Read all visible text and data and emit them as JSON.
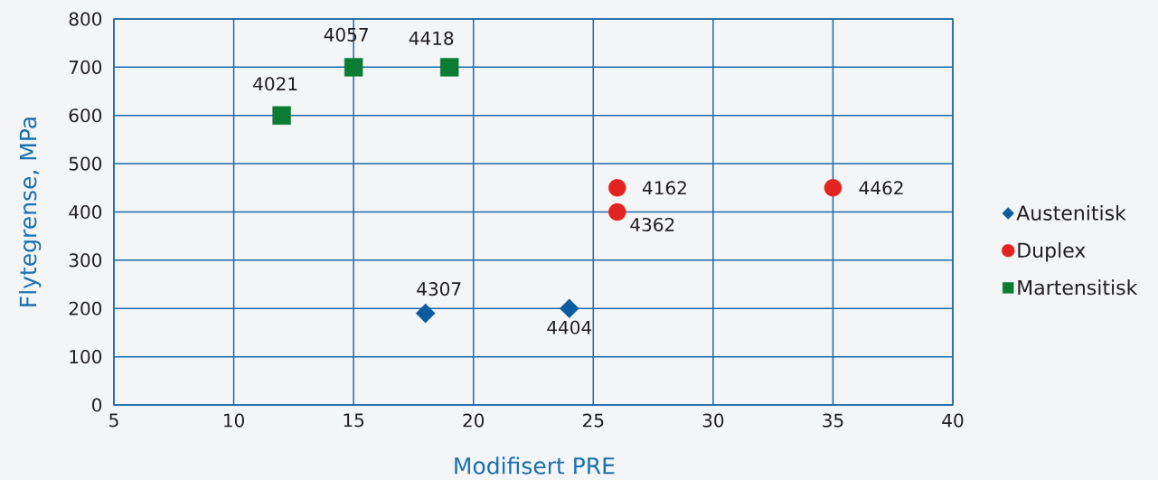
{
  "chart_data": {
    "type": "scatter",
    "xlabel": "Modifisert PRE",
    "ylabel": "Flytegrense, MPa",
    "series": [
      {
        "name": "Austenitisk",
        "color": "#0b5c9e",
        "marker": "diamond",
        "x": [
          18,
          24
        ],
        "values": [
          190,
          200
        ]
      },
      {
        "name": "Duplex",
        "color": "#e2231f",
        "marker": "circle",
        "x": [
          26,
          26,
          35
        ],
        "values": [
          450,
          400,
          450
        ]
      },
      {
        "name": "Martensitisk",
        "color": "#0a7c33",
        "marker": "square",
        "x": [
          12,
          15,
          19
        ],
        "values": [
          600,
          700,
          700
        ]
      }
    ],
    "xlim": [
      5,
      40
    ],
    "ylim": [
      0,
      800
    ],
    "xticks": [
      5,
      10,
      15,
      20,
      25,
      30,
      35,
      40
    ],
    "yticks": [
      0,
      100,
      200,
      300,
      400,
      500,
      600,
      700,
      800
    ],
    "grid": true,
    "legend": "right",
    "annotations": [
      {
        "text": "4307",
        "x": 18,
        "y": 190
      },
      {
        "text": "4404",
        "x": 24,
        "y": 200
      },
      {
        "text": "4162",
        "x": 26,
        "y": 450
      },
      {
        "text": "4362",
        "x": 26,
        "y": 400
      },
      {
        "text": "4462",
        "x": 35,
        "y": 450
      },
      {
        "text": "4021",
        "x": 12,
        "y": 600
      },
      {
        "text": "4057",
        "x": 15,
        "y": 700
      },
      {
        "text": "4418",
        "x": 19,
        "y": 700
      }
    ]
  }
}
